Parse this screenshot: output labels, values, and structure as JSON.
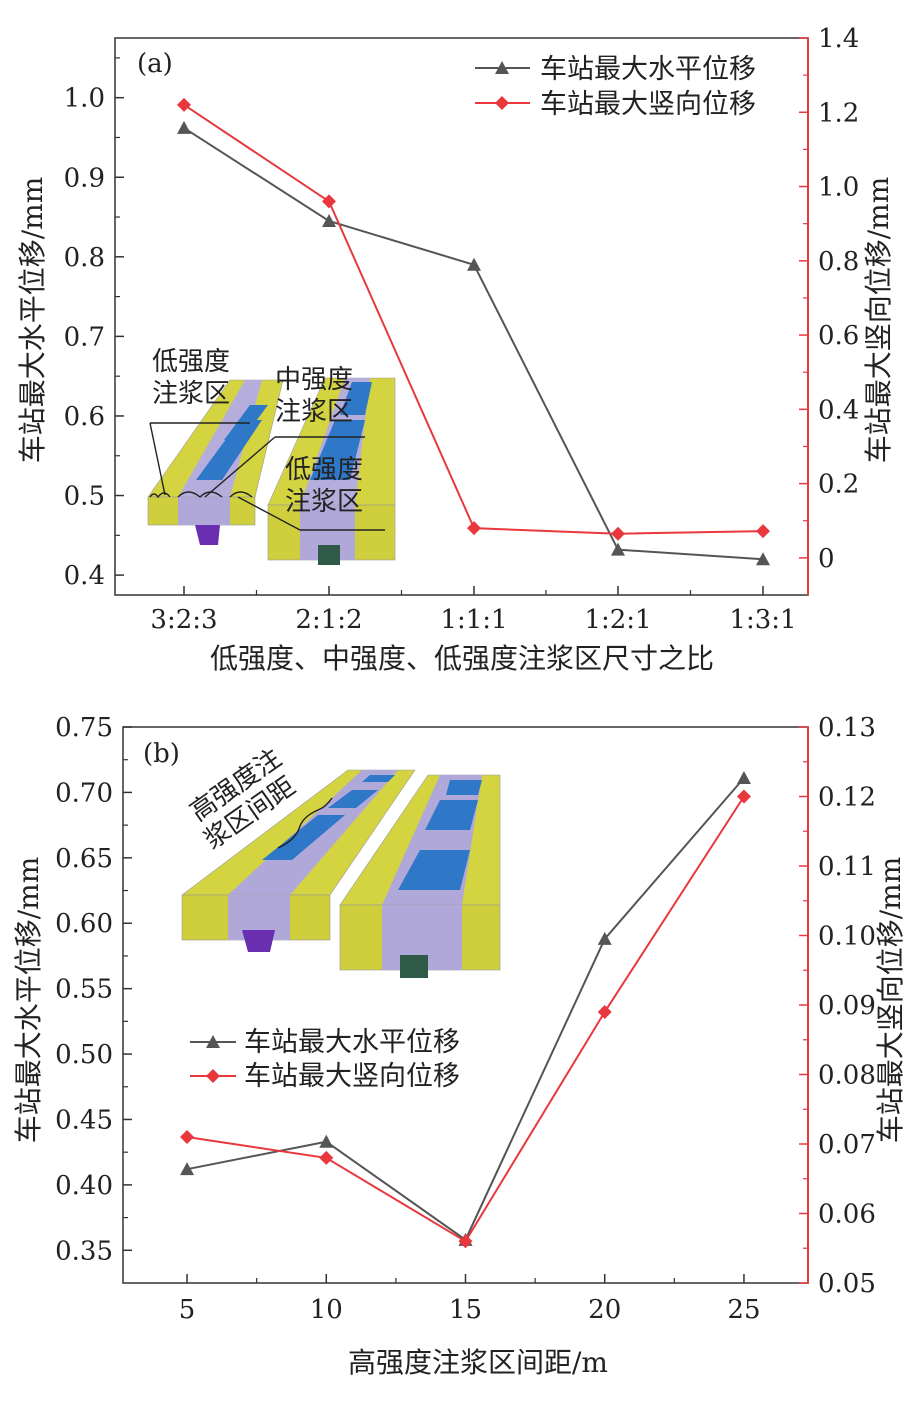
{
  "chart_data": [
    {
      "panel_label": "(a)",
      "type": "line",
      "categories": [
        "3:2:3",
        "2:1:2",
        "1:1:1",
        "1:2:1",
        "1:3:1"
      ],
      "xlabel": "低强度、中强度、低强度注浆区尺寸之比",
      "ylabel_left": "车站最大水平位移/mm",
      "ylabel_right": "车站最大竖向位移/mm",
      "ylim_left": [
        0.375,
        1.075
      ],
      "ylim_right": [
        -0.1,
        1.4
      ],
      "yticks_left": [
        "0.4",
        "0.5",
        "0.6",
        "0.7",
        "0.8",
        "0.9",
        "1.0"
      ],
      "yticks_right": [
        "0",
        "0.2",
        "0.4",
        "0.6",
        "0.8",
        "1.0",
        "1.2",
        "1.4"
      ],
      "series": [
        {
          "name": "车站最大水平位移",
          "axis": "left",
          "color": "#555555",
          "marker": "triangle",
          "values": [
            0.962,
            0.845,
            0.79,
            0.432,
            0.42
          ]
        },
        {
          "name": "车站最大竖向位移",
          "axis": "right",
          "color": "#e8383d",
          "marker": "diamond",
          "values": [
            1.22,
            0.96,
            0.08,
            0.065,
            0.072
          ]
        }
      ],
      "legend_position": "top-right",
      "inset_labels": [
        "低强度\n注浆区",
        "中强度\n注浆区",
        "低强度\n注浆区"
      ]
    },
    {
      "panel_label": "(b)",
      "type": "line",
      "x": [
        5,
        10,
        15,
        20,
        25
      ],
      "xlabel": "高强度注浆区间距/m",
      "ylabel_left": "车站最大水平位移/mm",
      "ylabel_right": "车站最大竖向位移/mm",
      "ylim_left": [
        0.325,
        0.75
      ],
      "ylim_right": [
        0.05,
        0.13
      ],
      "xlim": [
        2.7,
        27.3
      ],
      "yticks_left": [
        "0.35",
        "0.40",
        "0.45",
        "0.50",
        "0.55",
        "0.60",
        "0.65",
        "0.70",
        "0.75"
      ],
      "yticks_right": [
        "0.05",
        "0.06",
        "0.07",
        "0.08",
        "0.09",
        "0.10",
        "0.11",
        "0.12",
        "0.13"
      ],
      "series": [
        {
          "name": "车站最大水平位移",
          "axis": "left",
          "color": "#555555",
          "marker": "triangle",
          "values": [
            0.412,
            0.433,
            0.358,
            0.588,
            0.711
          ]
        },
        {
          "name": "车站最大竖向位移",
          "axis": "right",
          "color": "#e8383d",
          "marker": "diamond",
          "values": [
            0.071,
            0.068,
            0.056,
            0.089,
            0.12
          ]
        }
      ],
      "legend_position": "middle-left",
      "inset_labels": [
        "高强度注\n浆区间距"
      ]
    }
  ],
  "colors": {
    "axis": "#333333",
    "left_series": "#555555",
    "right_series": "#e8383d",
    "inset_yellow": "#cccc3a",
    "inset_lavender": "#b0a8d8",
    "inset_blue": "#2f78c8",
    "inset_purple": "#6a2fb0",
    "inset_green": "#2f5a48"
  }
}
